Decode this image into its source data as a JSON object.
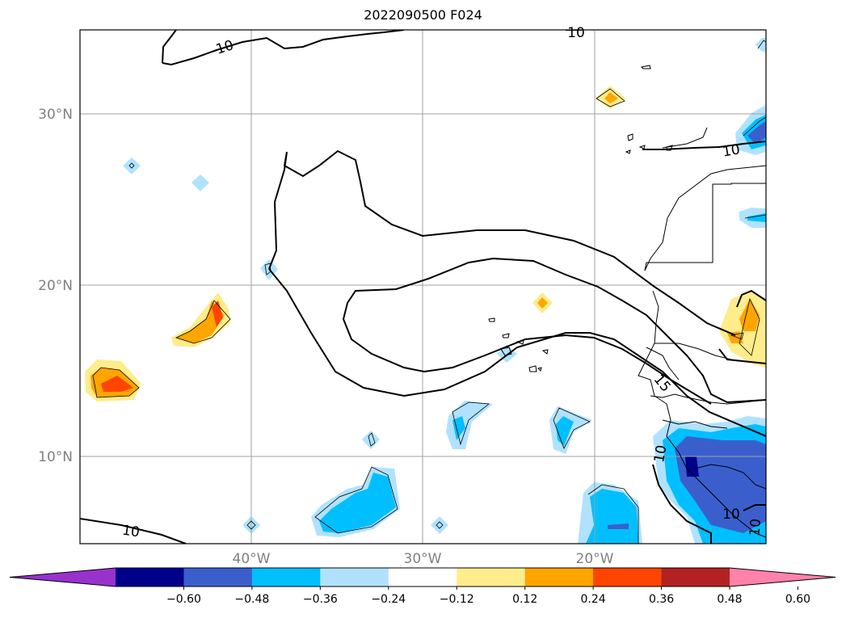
{
  "title": "2022090500 F024",
  "map": {
    "lat_labels": [
      "30°N",
      "20°N",
      "10°N"
    ],
    "lon_labels": [
      "40°W",
      "30°W",
      "20°W"
    ],
    "contour_labels": [
      "10",
      "10",
      "10",
      "10",
      "15",
      "10",
      "10",
      "10"
    ]
  },
  "colorbar": {
    "ticks": [
      "−0.60",
      "−0.48",
      "−0.36",
      "−0.24",
      "−0.12",
      "0.12",
      "0.24",
      "0.36",
      "0.48",
      "0.60"
    ],
    "colors": [
      "#9932cc",
      "#00008b",
      "#3a5fcd",
      "#00bfff",
      "#b0e2ff",
      "#ffffff",
      "#ffec8b",
      "#ffa500",
      "#ff4500",
      "#b22222",
      "#ff82ab"
    ],
    "extend": "both"
  }
}
